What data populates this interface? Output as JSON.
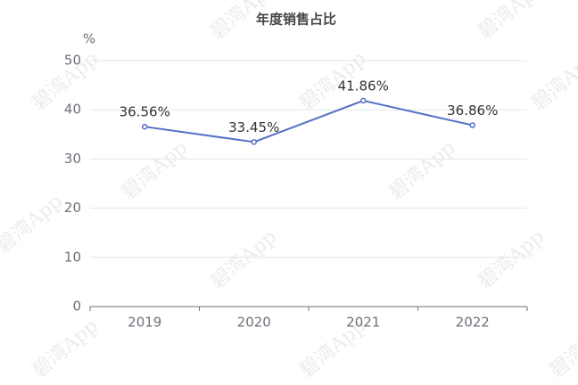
{
  "chart_data": {
    "type": "line",
    "title": "年度销售占比",
    "ylabel": "%",
    "categories": [
      "2019",
      "2020",
      "2021",
      "2022"
    ],
    "values": [
      36.56,
      33.45,
      41.86,
      36.86
    ],
    "value_labels": [
      "36.56%",
      "33.45%",
      "41.86%",
      "36.86%"
    ],
    "color": "#5470c6",
    "ylim": [
      0,
      50
    ],
    "yticks": [
      0,
      10,
      20,
      30,
      40,
      50
    ],
    "grid": true,
    "watermark": "碧湾App"
  }
}
